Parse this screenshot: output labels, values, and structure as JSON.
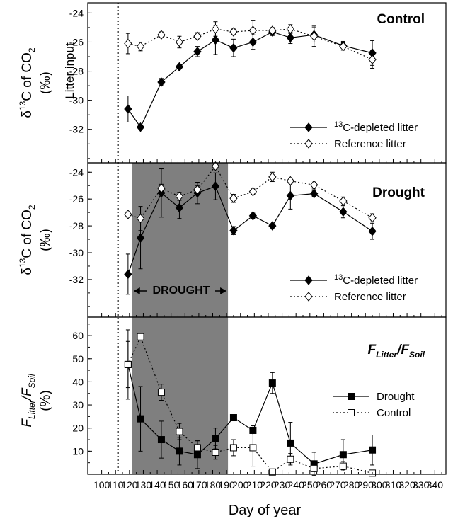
{
  "x_axis": {
    "label": "Day of year",
    "ticks": [
      100,
      110,
      120,
      130,
      140,
      150,
      160,
      170,
      180,
      190,
      200,
      210,
      220,
      230,
      240,
      250,
      260,
      270,
      280,
      290,
      300,
      310,
      320,
      330,
      340
    ],
    "range": [
      90,
      348
    ]
  },
  "annotations": {
    "litter_input": "Litter input",
    "litter_input_day": 112,
    "drought_label": "DROUGHT",
    "drought_period": [
      122,
      191
    ]
  },
  "chart_data": [
    {
      "type": "line",
      "title": "Control",
      "ylabel_main": "δ13C of CO2",
      "ylabel_unit": "(‰)",
      "ylim": [
        -34.3,
        -23.3
      ],
      "yticks": [
        -24,
        -26,
        -28,
        -30,
        -32
      ],
      "ytick_labels": [
        "-24",
        "-26",
        "-28",
        "-30",
        "-32"
      ],
      "legend_position": "bottom-right",
      "series": [
        {
          "name": "13C-depleted litter",
          "marker": "filled-diamond",
          "line": "solid",
          "x": [
            119,
            128,
            143,
            156,
            169,
            182,
            195,
            209,
            223,
            236,
            253,
            274,
            295
          ],
          "y": [
            -30.6,
            -31.85,
            -28.75,
            -27.7,
            -26.65,
            -25.85,
            -26.4,
            -26.0,
            -25.3,
            -25.7,
            -25.5,
            -26.25,
            -26.75
          ],
          "err": [
            0.9,
            0,
            0.25,
            0,
            0.35,
            1.0,
            0.6,
            0.5,
            0.25,
            0.4,
            0.5,
            0.3,
            0.85
          ]
        },
        {
          "name": "Reference litter",
          "marker": "open-diamond",
          "line": "dotted",
          "x": [
            119,
            128,
            143,
            156,
            169,
            182,
            195,
            209,
            223,
            236,
            253,
            274,
            295
          ],
          "y": [
            -26.1,
            -26.3,
            -25.5,
            -26.0,
            -25.6,
            -25.1,
            -25.3,
            -25.2,
            -25.2,
            -25.1,
            -25.6,
            -26.3,
            -27.2
          ],
          "err": [
            0.7,
            0.3,
            0.2,
            0.4,
            0.25,
            0.5,
            0.2,
            0.7,
            0.2,
            0.3,
            0.7,
            0.25,
            0.6
          ]
        }
      ]
    },
    {
      "type": "line",
      "title": "Drought",
      "ylabel_main": "δ13C of CO2",
      "ylabel_unit": "(‰)",
      "ylim": [
        -34.8,
        -23.3
      ],
      "yticks": [
        -24,
        -26,
        -28,
        -30,
        -32
      ],
      "ytick_labels": [
        "-24",
        "-26",
        "-28",
        "-30",
        "-32"
      ],
      "legend_position": "bottom-right",
      "series": [
        {
          "name": "13C-depleted litter",
          "marker": "filled-diamond",
          "line": "solid",
          "x": [
            119,
            128,
            143,
            156,
            169,
            182,
            195,
            209,
            223,
            236,
            253,
            274,
            295
          ],
          "y": [
            -31.6,
            -28.9,
            -25.55,
            -26.65,
            -25.55,
            -25.05,
            -28.35,
            -27.25,
            -28.0,
            -25.75,
            -25.6,
            -26.95,
            -28.4
          ],
          "err": [
            1.5,
            2.3,
            1.8,
            0.8,
            0.8,
            1.0,
            0.3,
            0.2,
            0,
            1.0,
            0.2,
            0.45,
            0.6
          ]
        },
        {
          "name": "Reference litter",
          "marker": "open-diamond",
          "line": "dotted",
          "x": [
            119,
            128,
            143,
            156,
            169,
            182,
            195,
            209,
            223,
            236,
            253,
            274,
            295
          ],
          "y": [
            -27.15,
            -27.45,
            -25.2,
            -25.8,
            -25.3,
            -23.55,
            -25.95,
            -25.45,
            -24.35,
            -24.65,
            -24.95,
            -26.15,
            -27.4
          ],
          "err": [
            0.2,
            0.9,
            0.3,
            0.3,
            0.3,
            0.2,
            0.3,
            0.2,
            0.35,
            0.2,
            0.3,
            0.3,
            0.3
          ]
        }
      ]
    },
    {
      "type": "line",
      "title_main": "F",
      "title_sub1": "Litter",
      "title_sep": "/F",
      "title_sub2": "Soil",
      "ylabel_main": "F",
      "ylabel_sub1": "Litter",
      "ylabel_sep": "/F",
      "ylabel_sub2": "Soil",
      "ylabel_unit": "(%)",
      "ylim": [
        0,
        68
      ],
      "yticks": [
        10,
        20,
        30,
        40,
        50,
        60
      ],
      "ytick_labels": [
        "10",
        "20",
        "30",
        "40",
        "50",
        "60"
      ],
      "legend_position": "right",
      "series": [
        {
          "name": "Drought",
          "marker": "filled-square",
          "line": "solid",
          "x": [
            119,
            128,
            143,
            156,
            169,
            182,
            195,
            209,
            223,
            236,
            253,
            274,
            295
          ],
          "y": [
            47.5,
            24.0,
            15.0,
            10.0,
            8.5,
            15.5,
            24.5,
            19.0,
            39.5,
            13.5,
            4.5,
            8.5,
            10.5
          ],
          "err": [
            15,
            14,
            8,
            6,
            6,
            4.5,
            0,
            2,
            4.5,
            9,
            5,
            6.5,
            6.5
          ]
        },
        {
          "name": "Control",
          "marker": "open-square",
          "line": "dotted",
          "x": [
            119,
            128,
            143,
            156,
            169,
            182,
            195,
            209,
            223,
            236,
            253,
            274,
            295
          ],
          "y": [
            47.5,
            59.5,
            35.5,
            18.5,
            11.5,
            9.5,
            11.5,
            11.5,
            1.0,
            6.5,
            2.5,
            3.5,
            0.5
          ],
          "err": [
            10,
            1.5,
            3.5,
            3.5,
            3,
            3,
            3.5,
            8,
            0,
            2.5,
            2.5,
            2,
            1
          ]
        }
      ]
    }
  ]
}
